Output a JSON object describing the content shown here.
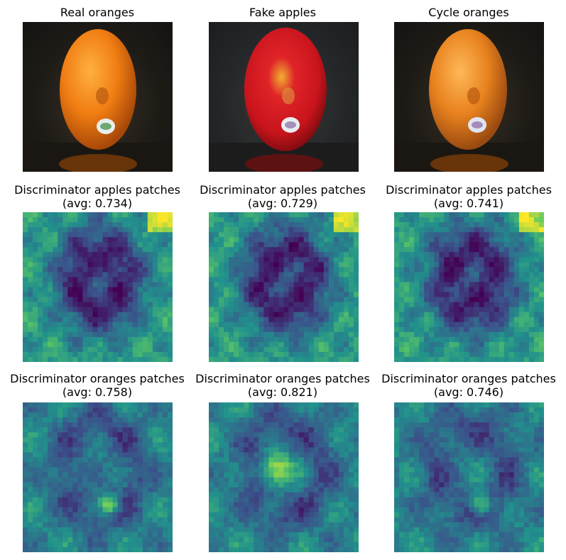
{
  "panels": [
    {
      "title_line1": "Real oranges",
      "title_line2": "",
      "kind": "photo",
      "fruit_color": "#f07d12",
      "highlight": "#ffb040"
    },
    {
      "title_line1": "Fake apples",
      "title_line2": "",
      "kind": "photo",
      "fruit_color": "#c8141c",
      "highlight": "#f0b030"
    },
    {
      "title_line1": "Cycle oranges",
      "title_line2": "",
      "kind": "photo",
      "fruit_color": "#e8821e",
      "highlight": "#ffb858"
    },
    {
      "title_line1": "Discriminator apples patches",
      "title_line2": "(avg: 0.734)",
      "kind": "heatmap"
    },
    {
      "title_line1": "Discriminator apples patches",
      "title_line2": "(avg: 0.729)",
      "kind": "heatmap"
    },
    {
      "title_line1": "Discriminator apples patches",
      "title_line2": "(avg: 0.741)",
      "kind": "heatmap"
    },
    {
      "title_line1": "Discriminator oranges patches",
      "title_line2": "(avg: 0.758)",
      "kind": "heatmap"
    },
    {
      "title_line1": "Discriminator oranges patches",
      "title_line2": "(avg: 0.821)",
      "kind": "heatmap"
    },
    {
      "title_line1": "Discriminator oranges patches",
      "title_line2": "(avg: 0.746)",
      "kind": "heatmap"
    }
  ],
  "colors": {
    "viridis_low": "#440154",
    "viridis_mid": "#21918c",
    "viridis_high": "#fde725"
  }
}
